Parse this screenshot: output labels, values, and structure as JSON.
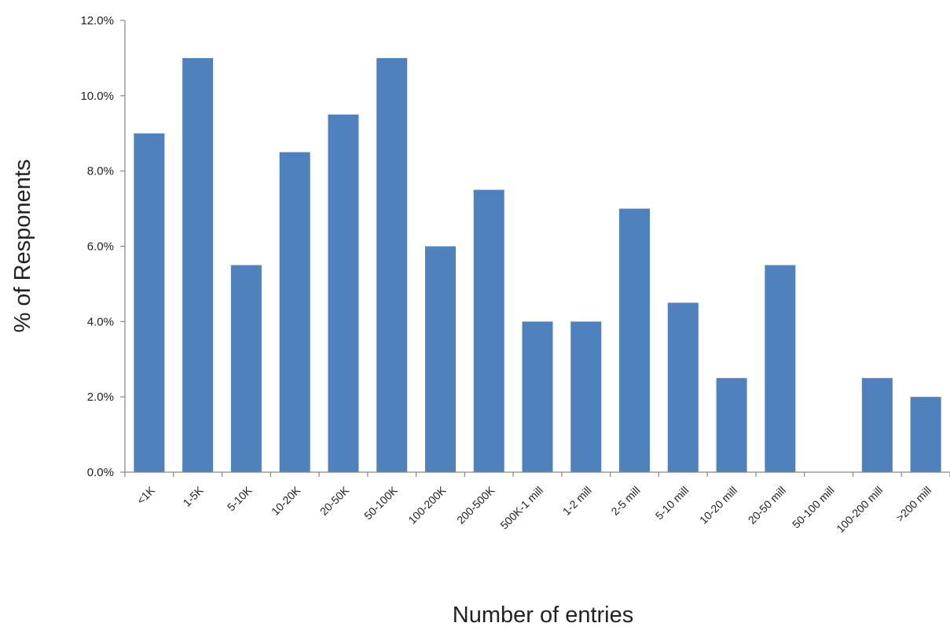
{
  "chart_data": {
    "type": "bar",
    "title": "",
    "xlabel": "Number  of  entries",
    "ylabel": "% of  Responents",
    "categories": [
      "<1K",
      "1-5K",
      "5-10K",
      "10-20K",
      "20-50K",
      "50-100K",
      "100-200K",
      "200-500K",
      "500K-1 mill",
      "1-2 mill",
      "2-5 mill",
      "5-10 mill",
      "10-20 mill",
      "20-50 mill",
      "50-100 mill",
      "100-200 mill",
      ">200 mill"
    ],
    "values": [
      9.0,
      11.0,
      5.5,
      8.5,
      9.5,
      11.0,
      6.0,
      7.5,
      4.0,
      4.0,
      7.0,
      4.5,
      2.5,
      5.5,
      0.0,
      2.5,
      2.0
    ],
    "ylim": [
      0,
      12
    ],
    "yticks": [
      "0.0%",
      "2.0%",
      "4.0%",
      "6.0%",
      "8.0%",
      "10.0%",
      "12.0%"
    ],
    "grid": false,
    "legend": "none",
    "bar_color": "#4f81bd"
  }
}
